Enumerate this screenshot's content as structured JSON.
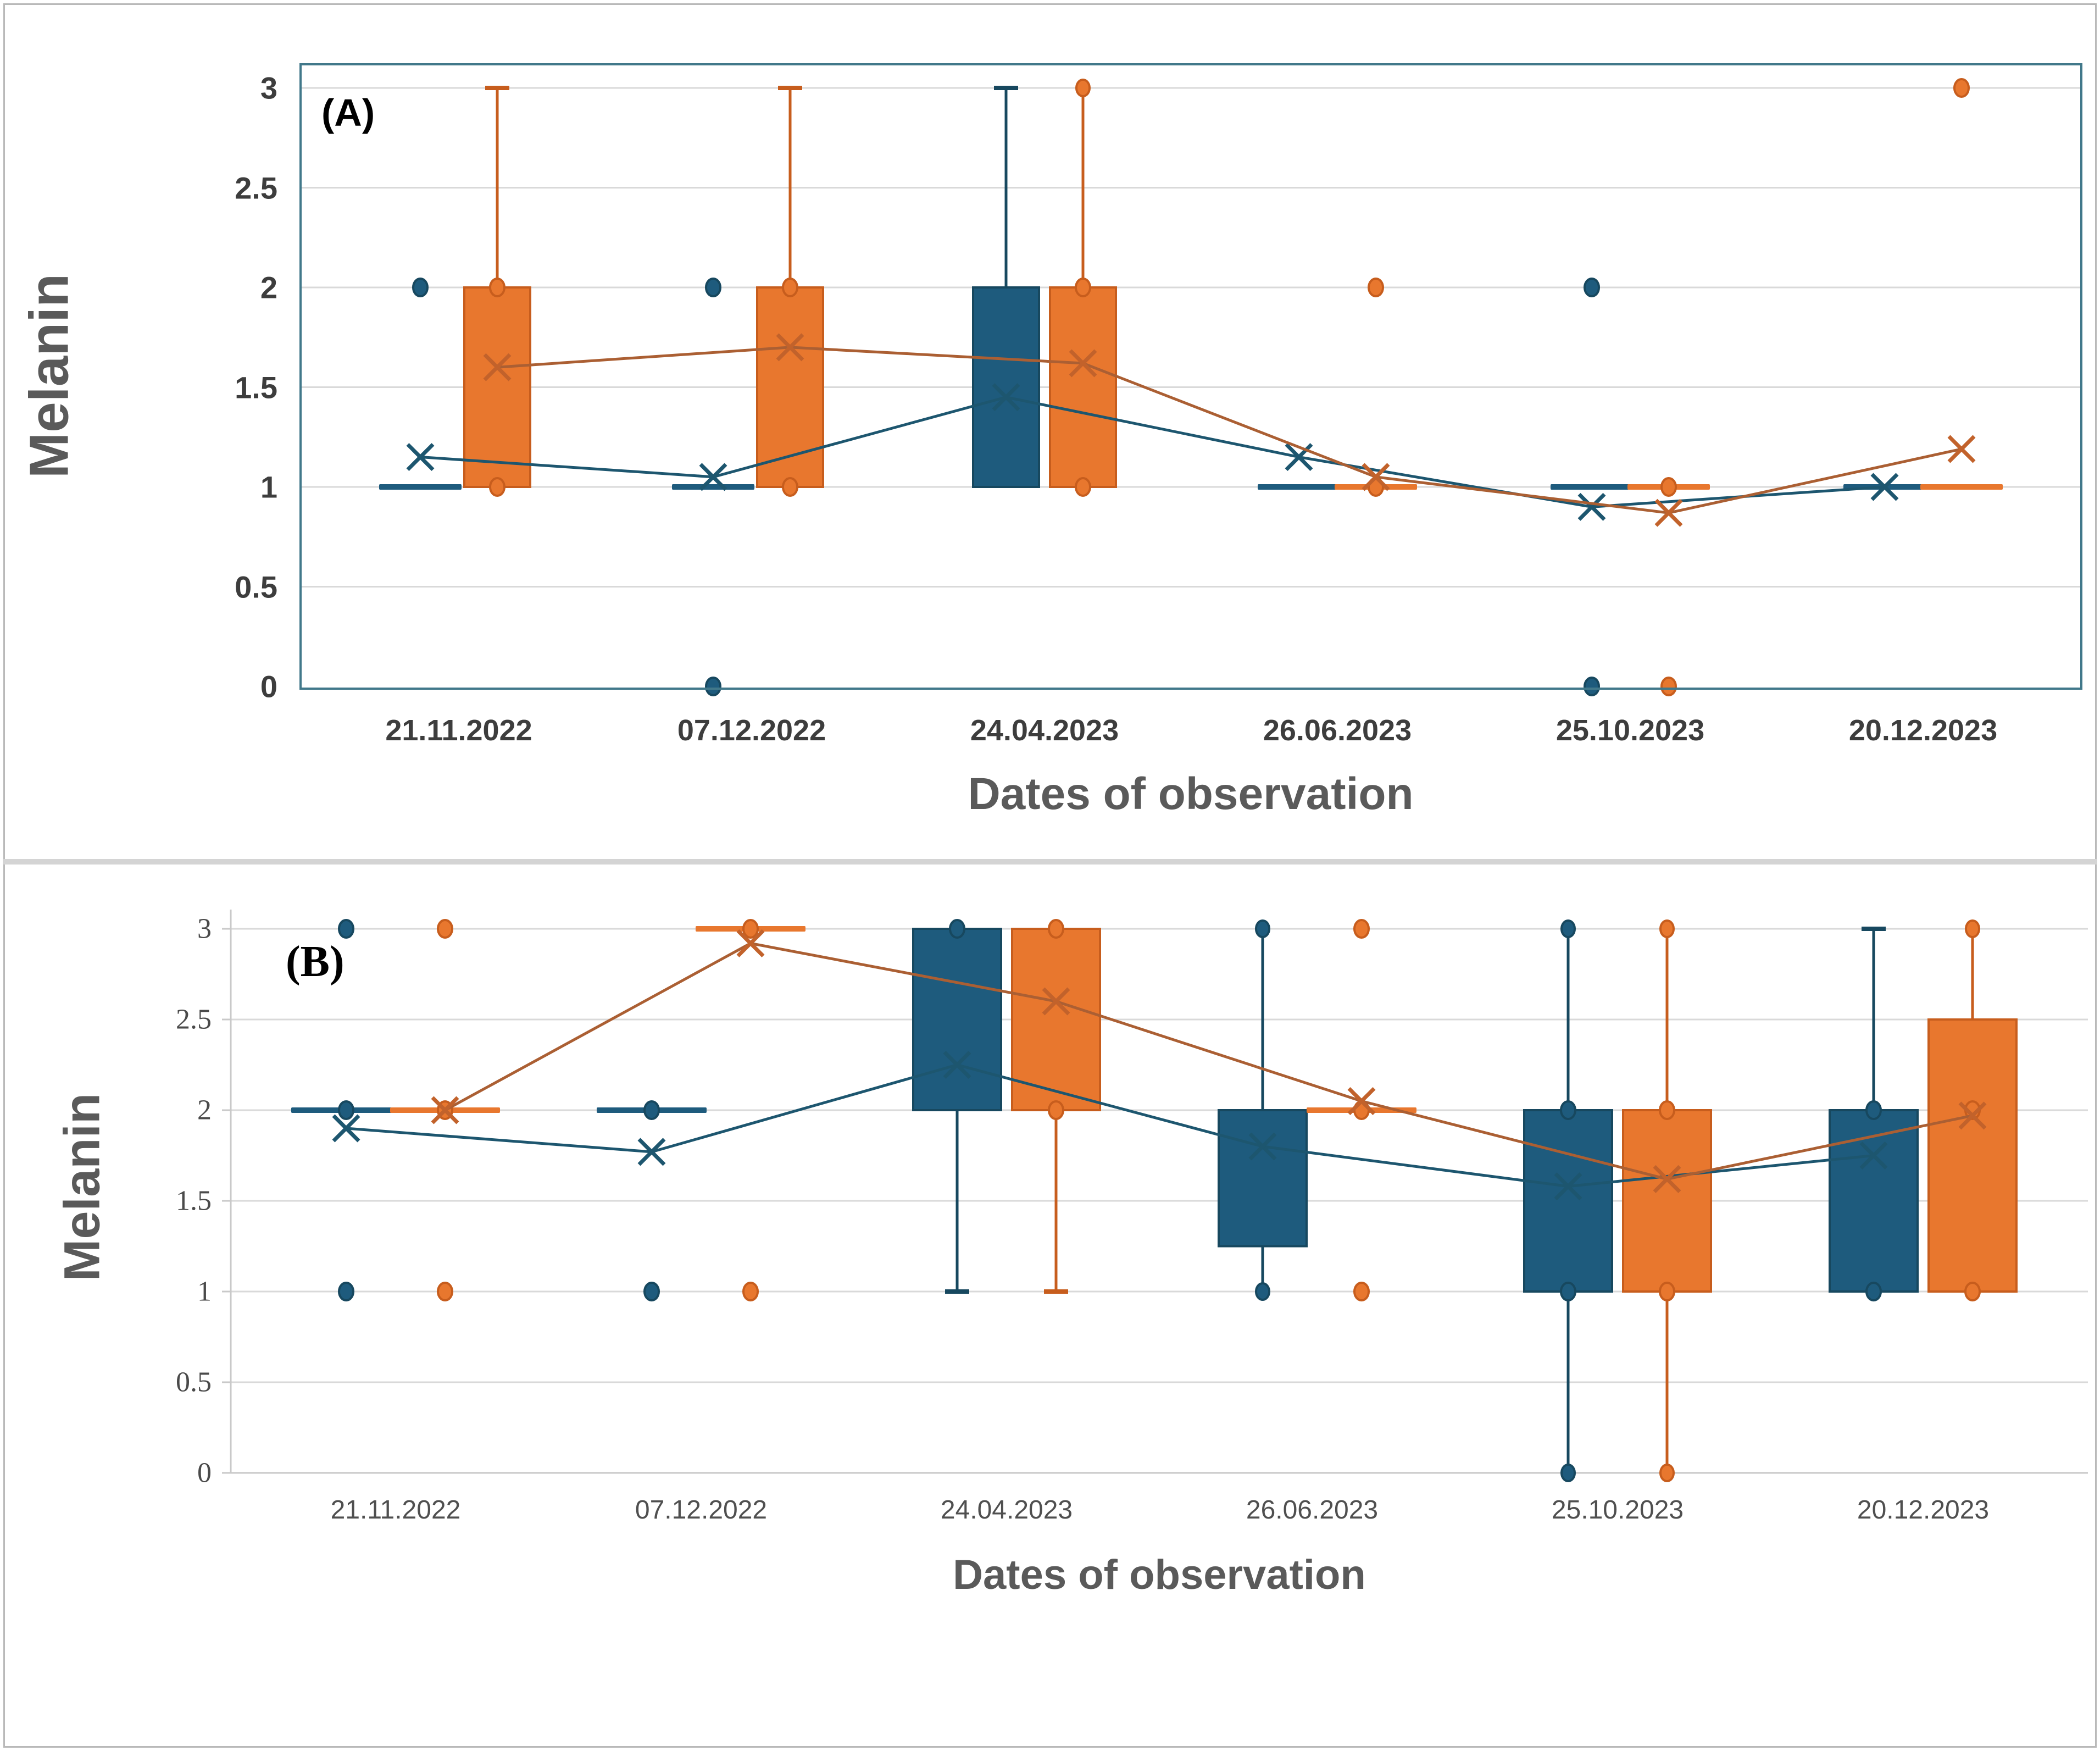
{
  "colors": {
    "blue": "#1e5b7d",
    "blue_edge": "#17485f",
    "blue_line": "#1d566f",
    "orange": "#e8772e",
    "orange_edge": "#c75d1d",
    "orange_line": "#ab5f33",
    "grid": "#d9d9d9",
    "frame_a": "#41788a",
    "axis_b": "#c9c9c9",
    "tick_text": "#3d3d3d",
    "axis_title_text": "#5a5a5a"
  },
  "chart_data": [
    {
      "type": "box",
      "panel": "A",
      "label": "(A)",
      "ylabel": "Melanin",
      "xlabel": "Dates of observation",
      "categories": [
        "21.11.2022",
        "07.12.2022",
        "24.04.2023",
        "26.06.2023",
        "25.10.2023",
        "20.12.2023"
      ],
      "ylim": [
        0,
        3
      ],
      "grid": true,
      "legend": "none",
      "yticks": [
        {
          "v": 3,
          "label": "3"
        },
        {
          "v": 2.5,
          "label": "2.5"
        },
        {
          "v": 2,
          "label": "2"
        },
        {
          "v": 1.5,
          "label": "1.5"
        },
        {
          "v": 1,
          "label": "1"
        },
        {
          "v": 0.5,
          "label": "0.5"
        },
        {
          "v": 0,
          "label": "0"
        }
      ],
      "series": [
        {
          "name": "series-blue",
          "color": "#1e5b7d",
          "edge": "#17485f",
          "line": "#1d566f",
          "xcol": "#1d566f",
          "boxes": [
            {
              "flat": 1,
              "pts": [
                2
              ],
              "mean": 1.15
            },
            {
              "flat": 1,
              "pts": [
                2,
                0
              ],
              "mean": 1.05
            },
            {
              "q1": 1,
              "q3": 2,
              "whi": 3,
              "thi": "cap",
              "mean": 1.45
            },
            {
              "flat": 1,
              "mean": 1.15
            },
            {
              "flat": 1,
              "pts": [
                2,
                0
              ],
              "mean": 0.9
            },
            {
              "flat": 1,
              "mean": 1
            }
          ]
        },
        {
          "name": "series-orange",
          "color": "#e8772e",
          "edge": "#c75d1d",
          "line": "#ab5f33",
          "xcol": "#c2622b",
          "boxes": [
            {
              "q1": 1,
              "q3": 2,
              "whi": 3,
              "thi": "cap",
              "pts": [
                2,
                1
              ],
              "mean": 1.6
            },
            {
              "q1": 1,
              "q3": 2,
              "whi": 3,
              "thi": "cap",
              "pts": [
                2,
                1
              ],
              "mean": 1.7
            },
            {
              "q1": 1,
              "q3": 2,
              "whi": 3,
              "thi": "dot",
              "pts": [
                2,
                1
              ],
              "mean": 1.62
            },
            {
              "flat": 1,
              "pts": [
                2,
                1
              ],
              "mean": 1.05
            },
            {
              "flat": 1,
              "pts": [
                1,
                0
              ],
              "mean": 0.87
            },
            {
              "flat": 1,
              "pts": [
                3
              ],
              "mean": 1.19
            }
          ]
        }
      ]
    },
    {
      "type": "box",
      "panel": "B",
      "label": "(B)",
      "ylabel": "Melanin",
      "xlabel": "Dates of observation",
      "categories": [
        "21.11.2022",
        "07.12.2022",
        "24.04.2023",
        "26.06.2023",
        "25.10.2023",
        "20.12.2023"
      ],
      "ylim": [
        0,
        3
      ],
      "grid": true,
      "legend": "none",
      "yticks": [
        {
          "v": 3,
          "label": "3"
        },
        {
          "v": 2.5,
          "label": "2.5"
        },
        {
          "v": 2,
          "label": "2"
        },
        {
          "v": 1.5,
          "label": "1.5"
        },
        {
          "v": 1,
          "label": "1"
        },
        {
          "v": 0.5,
          "label": "0.5"
        },
        {
          "v": 0,
          "label": "0"
        }
      ],
      "series": [
        {
          "name": "series-blue",
          "color": "#1e5b7d",
          "edge": "#17485f",
          "line": "#1d566f",
          "xcol": "#1d566f",
          "boxes": [
            {
              "flat": 2,
              "pts": [
                3,
                2,
                1
              ],
              "mean": 1.9
            },
            {
              "flat": 2,
              "pts": [
                2,
                1
              ],
              "mean": 1.77
            },
            {
              "q1": 2,
              "q3": 3,
              "wlo": 1,
              "tlo": "cap",
              "pts": [
                3
              ],
              "mean": 2.25
            },
            {
              "q1": 1.25,
              "q3": 2,
              "whi": 3,
              "thi": "dot",
              "wlo": 1,
              "tlo": "dot",
              "mean": 1.8
            },
            {
              "q1": 1,
              "q3": 2,
              "whi": 3,
              "thi": "dot",
              "wlo": 0,
              "tlo": "dot",
              "pts": [
                2,
                1
              ],
              "mean": 1.58
            },
            {
              "q1": 1,
              "q3": 2,
              "whi": 3,
              "thi": "cap",
              "pts": [
                2,
                1
              ],
              "mean": 1.75
            }
          ]
        },
        {
          "name": "series-orange",
          "color": "#e8772e",
          "edge": "#c75d1d",
          "line": "#ab5f33",
          "xcol": "#c2622b",
          "boxes": [
            {
              "flat": 2,
              "pts": [
                3,
                2,
                1
              ],
              "mean": 2
            },
            {
              "flat": 3,
              "pts": [
                3,
                1
              ],
              "mean": 2.92
            },
            {
              "q1": 2,
              "q3": 3,
              "wlo": 1,
              "tlo": "cap",
              "pts": [
                3,
                2
              ],
              "mean": 2.6
            },
            {
              "flat": 2,
              "pts": [
                3,
                2,
                1
              ],
              "mean": 2.05
            },
            {
              "q1": 1,
              "q3": 2,
              "whi": 3,
              "thi": "dot",
              "wlo": 0,
              "tlo": "dot",
              "pts": [
                2,
                1
              ],
              "mean": 1.62
            },
            {
              "q1": 1,
              "q3": 2.5,
              "whi": 3,
              "thi": "dot",
              "pts": [
                2,
                1
              ],
              "mean": 1.97
            }
          ]
        }
      ]
    }
  ]
}
